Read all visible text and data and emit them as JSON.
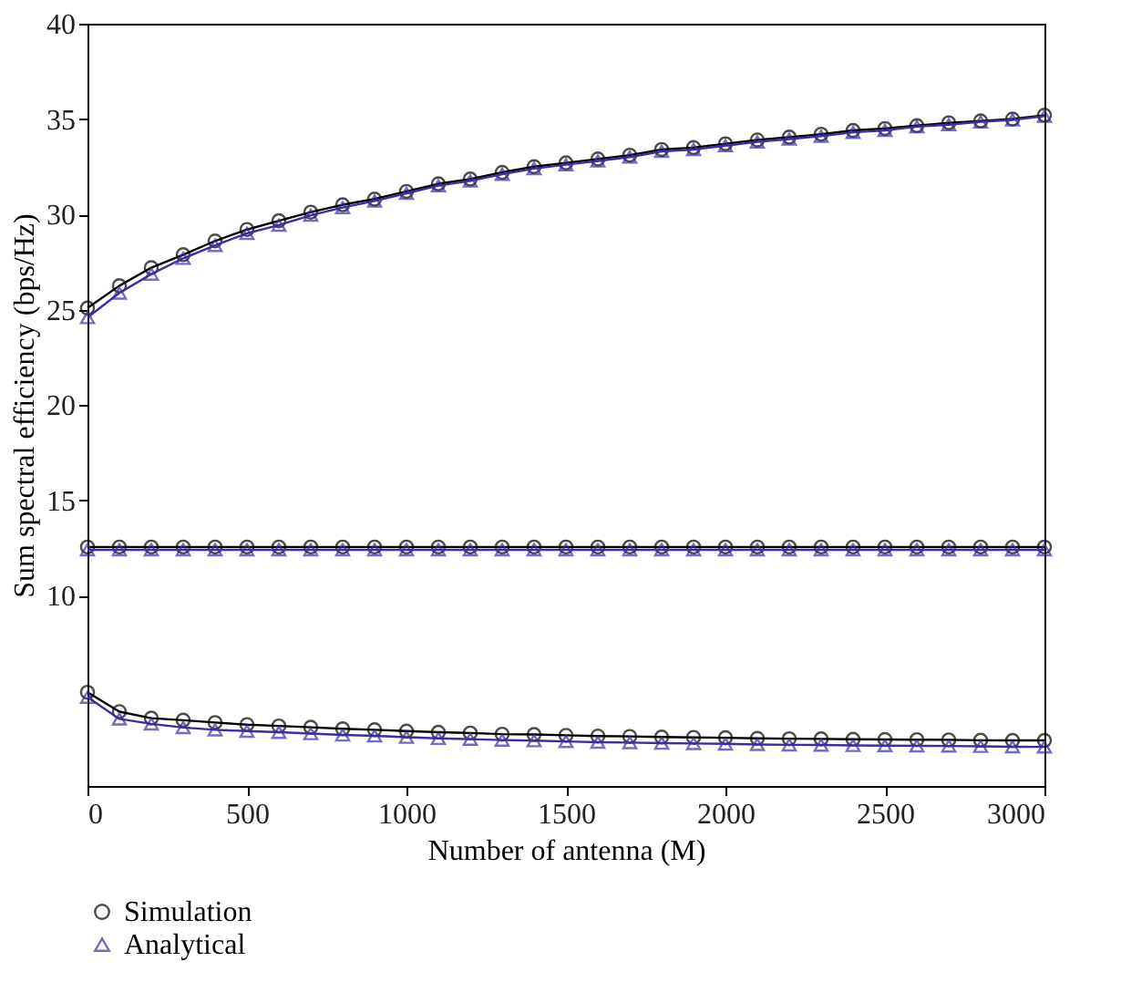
{
  "chart_data": {
    "type": "line",
    "xlabel": "Number of antenna (M)",
    "ylabel": "Sum spectral efficiency (bps/Hz)",
    "x": [
      0,
      100,
      200,
      300,
      400,
      500,
      600,
      700,
      800,
      900,
      1000,
      1100,
      1200,
      1300,
      1400,
      1500,
      1600,
      1700,
      1800,
      1900,
      2000,
      2100,
      2200,
      2300,
      2400,
      2500,
      2600,
      2700,
      2800,
      2900,
      3000
    ],
    "xlim": [
      0,
      3000
    ],
    "xticks": [
      0,
      500,
      1000,
      1500,
      2000,
      2500,
      3000
    ],
    "ylim": [
      0,
      40
    ],
    "yticks": [
      10,
      15,
      20,
      25,
      30,
      35,
      40
    ],
    "grid": false,
    "legend": "bottom left",
    "line_style": "solid",
    "series": [
      {
        "name": "Simulation",
        "color": "#000000",
        "marker": "circle",
        "values": [
          25.08,
          26.25,
          27.2,
          27.88,
          28.6,
          29.2,
          29.66,
          30.11,
          30.5,
          30.8,
          31.2,
          31.6,
          31.85,
          32.2,
          32.5,
          32.7,
          32.9,
          33.1,
          33.4,
          33.5,
          33.7,
          33.9,
          34.05,
          34.2,
          34.4,
          34.5,
          34.65,
          34.8,
          34.9,
          35.0,
          35.2
        ]
      },
      {
        "name": "Analytical",
        "color": "#3a2fa0",
        "marker": "triangle",
        "values": [
          24.58,
          25.87,
          26.86,
          27.69,
          28.37,
          29.0,
          29.43,
          29.95,
          30.35,
          30.7,
          31.1,
          31.5,
          31.75,
          32.1,
          32.4,
          32.6,
          32.8,
          33.0,
          33.3,
          33.4,
          33.6,
          33.8,
          33.95,
          34.1,
          34.3,
          34.4,
          34.6,
          34.7,
          34.85,
          34.95,
          35.15
        ]
      },
      {
        "color": "#000000",
        "marker": "circle",
        "values": [
          12.54,
          12.54,
          12.54,
          12.54,
          12.54,
          12.54,
          12.54,
          12.54,
          12.54,
          12.54,
          12.54,
          12.54,
          12.54,
          12.54,
          12.54,
          12.54,
          12.54,
          12.54,
          12.54,
          12.54,
          12.54,
          12.54,
          12.54,
          12.54,
          12.54,
          12.54,
          12.54,
          12.54,
          12.54,
          12.54,
          12.54
        ]
      },
      {
        "color": "#3a2fa0",
        "marker": "triangle",
        "values": [
          12.39,
          12.39,
          12.39,
          12.39,
          12.39,
          12.39,
          12.39,
          12.39,
          12.39,
          12.39,
          12.39,
          12.39,
          12.39,
          12.39,
          12.39,
          12.39,
          12.39,
          12.39,
          12.39,
          12.39,
          12.39,
          12.39,
          12.39,
          12.39,
          12.39,
          12.39,
          12.39,
          12.39,
          12.39,
          12.39,
          12.39
        ]
      },
      {
        "color": "#000000",
        "marker": "circle",
        "values": [
          4.92,
          3.9,
          3.56,
          3.45,
          3.33,
          3.22,
          3.15,
          3.08,
          3.0,
          2.95,
          2.88,
          2.82,
          2.78,
          2.72,
          2.7,
          2.66,
          2.62,
          2.6,
          2.57,
          2.55,
          2.53,
          2.5,
          2.48,
          2.47,
          2.45,
          2.44,
          2.43,
          2.42,
          2.4,
          2.39,
          2.39
        ]
      },
      {
        "color": "#3a2fa0",
        "marker": "triangle",
        "values": [
          4.66,
          3.52,
          3.26,
          3.07,
          2.95,
          2.88,
          2.82,
          2.75,
          2.68,
          2.63,
          2.56,
          2.5,
          2.46,
          2.41,
          2.38,
          2.34,
          2.3,
          2.28,
          2.25,
          2.23,
          2.21,
          2.18,
          2.16,
          2.15,
          2.13,
          2.12,
          2.11,
          2.1,
          2.08,
          2.06,
          2.05
        ]
      }
    ]
  }
}
